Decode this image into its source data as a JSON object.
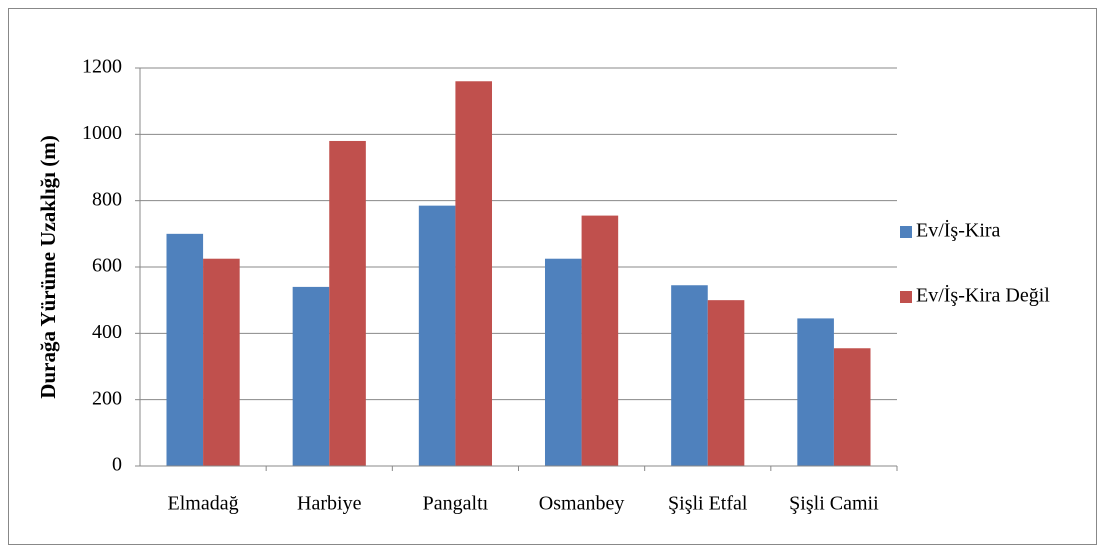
{
  "chart_data": {
    "type": "bar",
    "y_label": "Durağa Yürüme Uzaklığı (m)",
    "categories": [
      "Elmadağ",
      "Harbiye",
      "Pangaltı",
      "Osmanbey",
      "Şişli Etfal",
      "Şişli Camii"
    ],
    "series": [
      {
        "name": "Ev/İş-Kira",
        "color": "#4f81bd",
        "values": [
          700,
          540,
          785,
          625,
          545,
          445
        ]
      },
      {
        "name": "Ev/İş-Kira Değil",
        "color": "#c0504d",
        "values": [
          625,
          980,
          1160,
          755,
          500,
          355
        ]
      }
    ],
    "ylim": [
      0,
      1200
    ],
    "yticks": [
      0,
      200,
      400,
      600,
      800,
      1000,
      1200
    ],
    "grid": true,
    "legend": "right"
  }
}
